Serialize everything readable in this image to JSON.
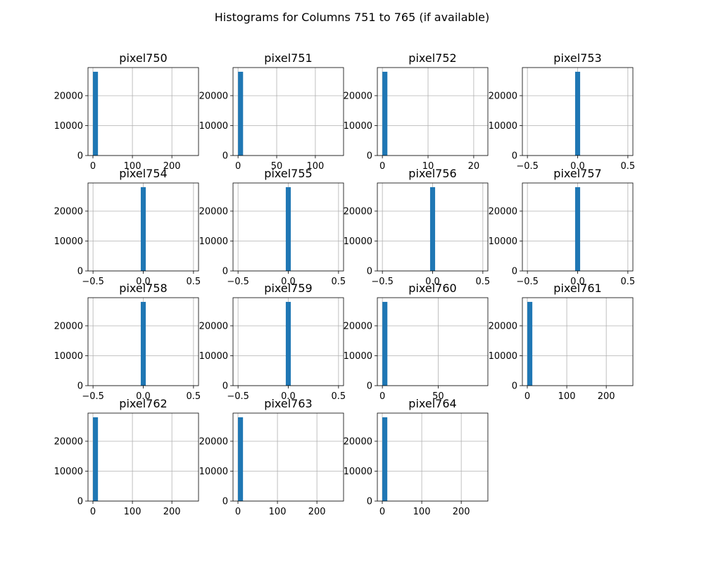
{
  "chart_data": {
    "type": "bar",
    "title": "Histograms for Columns 751 to 765 (if available)",
    "colors": {
      "bar": "#1f77b4",
      "grid": "#b0b0b0"
    },
    "grid": true,
    "panels": [
      {
        "name": "pixel750",
        "xlim": [
          -12.5,
          267.5
        ],
        "ylim": [
          0,
          29400
        ],
        "xticks": [
          0,
          100,
          200
        ],
        "xtick_labels": [
          "0",
          "100",
          "200"
        ],
        "yticks": [
          0,
          10000,
          20000
        ],
        "ytick_labels": [
          "0",
          "10000",
          "20000"
        ],
        "bars": [
          {
            "x0": 0,
            "x1": 12.75,
            "count": 28000
          }
        ]
      },
      {
        "name": "pixel751",
        "xlim": [
          -6.5,
          136.5
        ],
        "ylim": [
          0,
          29400
        ],
        "xticks": [
          0,
          50,
          100
        ],
        "xtick_labels": [
          "0",
          "50",
          "100"
        ],
        "yticks": [
          0,
          10000,
          20000
        ],
        "ytick_labels": [
          "0",
          "10000",
          "20000"
        ],
        "bars": [
          {
            "x0": 0,
            "x1": 6.5,
            "count": 28000
          }
        ]
      },
      {
        "name": "pixel752",
        "xlim": [
          -1.1,
          23.1
        ],
        "ylim": [
          0,
          29400
        ],
        "xticks": [
          0,
          10,
          20
        ],
        "xtick_labels": [
          "0",
          "10",
          "20"
        ],
        "yticks": [
          0,
          10000,
          20000
        ],
        "ytick_labels": [
          "0",
          "10000",
          "20000"
        ],
        "bars": [
          {
            "x0": 0,
            "x1": 1.1,
            "count": 28000
          }
        ]
      },
      {
        "name": "pixel753",
        "xlim": [
          -0.55,
          0.55
        ],
        "ylim": [
          0,
          29400
        ],
        "xticks": [
          -0.5,
          0,
          0.5
        ],
        "xtick_labels": [
          "−0.5",
          "0.0",
          "0.5"
        ],
        "yticks": [
          0,
          10000,
          20000
        ],
        "ytick_labels": [
          "0",
          "10000",
          "20000"
        ],
        "bars": [
          {
            "x0": -0.025,
            "x1": 0.025,
            "count": 28000
          }
        ]
      },
      {
        "name": "pixel754",
        "xlim": [
          -0.55,
          0.55
        ],
        "ylim": [
          0,
          29400
        ],
        "xticks": [
          -0.5,
          0,
          0.5
        ],
        "xtick_labels": [
          "−0.5",
          "0.0",
          "0.5"
        ],
        "yticks": [
          0,
          10000,
          20000
        ],
        "ytick_labels": [
          "0",
          "10000",
          "20000"
        ],
        "bars": [
          {
            "x0": -0.025,
            "x1": 0.025,
            "count": 28000
          }
        ]
      },
      {
        "name": "pixel755",
        "xlim": [
          -0.55,
          0.55
        ],
        "ylim": [
          0,
          29400
        ],
        "xticks": [
          -0.5,
          0,
          0.5
        ],
        "xtick_labels": [
          "−0.5",
          "0.0",
          "0.5"
        ],
        "yticks": [
          0,
          10000,
          20000
        ],
        "ytick_labels": [
          "0",
          "10000",
          "20000"
        ],
        "bars": [
          {
            "x0": -0.025,
            "x1": 0.025,
            "count": 28000
          }
        ]
      },
      {
        "name": "pixel756",
        "xlim": [
          -0.55,
          0.55
        ],
        "ylim": [
          0,
          29400
        ],
        "xticks": [
          -0.5,
          0,
          0.5
        ],
        "xtick_labels": [
          "−0.5",
          "0.0",
          "0.5"
        ],
        "yticks": [
          0,
          10000,
          20000
        ],
        "ytick_labels": [
          "0",
          "10000",
          "20000"
        ],
        "bars": [
          {
            "x0": -0.025,
            "x1": 0.025,
            "count": 28000
          }
        ]
      },
      {
        "name": "pixel757",
        "xlim": [
          -0.55,
          0.55
        ],
        "ylim": [
          0,
          29400
        ],
        "xticks": [
          -0.5,
          0,
          0.5
        ],
        "xtick_labels": [
          "−0.5",
          "0.0",
          "0.5"
        ],
        "yticks": [
          0,
          10000,
          20000
        ],
        "ytick_labels": [
          "0",
          "10000",
          "20000"
        ],
        "bars": [
          {
            "x0": -0.025,
            "x1": 0.025,
            "count": 28000
          }
        ]
      },
      {
        "name": "pixel758",
        "xlim": [
          -0.55,
          0.55
        ],
        "ylim": [
          0,
          29400
        ],
        "xticks": [
          -0.5,
          0,
          0.5
        ],
        "xtick_labels": [
          "−0.5",
          "0.0",
          "0.5"
        ],
        "yticks": [
          0,
          10000,
          20000
        ],
        "ytick_labels": [
          "0",
          "10000",
          "20000"
        ],
        "bars": [
          {
            "x0": -0.025,
            "x1": 0.025,
            "count": 28000
          }
        ]
      },
      {
        "name": "pixel759",
        "xlim": [
          -0.55,
          0.55
        ],
        "ylim": [
          0,
          29400
        ],
        "xticks": [
          -0.5,
          0,
          0.5
        ],
        "xtick_labels": [
          "−0.5",
          "0.0",
          "0.5"
        ],
        "yticks": [
          0,
          10000,
          20000
        ],
        "ytick_labels": [
          "0",
          "10000",
          "20000"
        ],
        "bars": [
          {
            "x0": -0.025,
            "x1": 0.025,
            "count": 28000
          }
        ]
      },
      {
        "name": "pixel760",
        "xlim": [
          -4.5,
          94.5
        ],
        "ylim": [
          0,
          29400
        ],
        "xticks": [
          0,
          50
        ],
        "xtick_labels": [
          "0",
          "50"
        ],
        "yticks": [
          0,
          10000,
          20000
        ],
        "ytick_labels": [
          "0",
          "10000",
          "20000"
        ],
        "bars": [
          {
            "x0": 0,
            "x1": 4.5,
            "count": 28000
          }
        ]
      },
      {
        "name": "pixel761",
        "xlim": [
          -12.5,
          267.5
        ],
        "ylim": [
          0,
          29400
        ],
        "xticks": [
          0,
          100,
          200
        ],
        "xtick_labels": [
          "0",
          "100",
          "200"
        ],
        "yticks": [
          0,
          10000,
          20000
        ],
        "ytick_labels": [
          "0",
          "10000",
          "20000"
        ],
        "bars": [
          {
            "x0": 0,
            "x1": 12.75,
            "count": 28000
          }
        ]
      },
      {
        "name": "pixel762",
        "xlim": [
          -12.5,
          267.5
        ],
        "ylim": [
          0,
          29400
        ],
        "xticks": [
          0,
          100,
          200
        ],
        "xtick_labels": [
          "0",
          "100",
          "200"
        ],
        "yticks": [
          0,
          10000,
          20000
        ],
        "ytick_labels": [
          "0",
          "10000",
          "20000"
        ],
        "bars": [
          {
            "x0": 0,
            "x1": 12.75,
            "count": 28000
          }
        ]
      },
      {
        "name": "pixel763",
        "xlim": [
          -12.5,
          267.5
        ],
        "ylim": [
          0,
          29400
        ],
        "xticks": [
          0,
          100,
          200
        ],
        "xtick_labels": [
          "0",
          "100",
          "200"
        ],
        "yticks": [
          0,
          10000,
          20000
        ],
        "ytick_labels": [
          "0",
          "10000",
          "20000"
        ],
        "bars": [
          {
            "x0": 0,
            "x1": 12.75,
            "count": 28000
          }
        ]
      },
      {
        "name": "pixel764",
        "xlim": [
          -12.5,
          267.5
        ],
        "ylim": [
          0,
          29400
        ],
        "xticks": [
          0,
          100,
          200
        ],
        "xtick_labels": [
          "0",
          "100",
          "200"
        ],
        "yticks": [
          0,
          10000,
          20000
        ],
        "ytick_labels": [
          "0",
          "10000",
          "20000"
        ],
        "bars": [
          {
            "x0": 0,
            "x1": 12.75,
            "count": 28000
          }
        ]
      }
    ]
  }
}
